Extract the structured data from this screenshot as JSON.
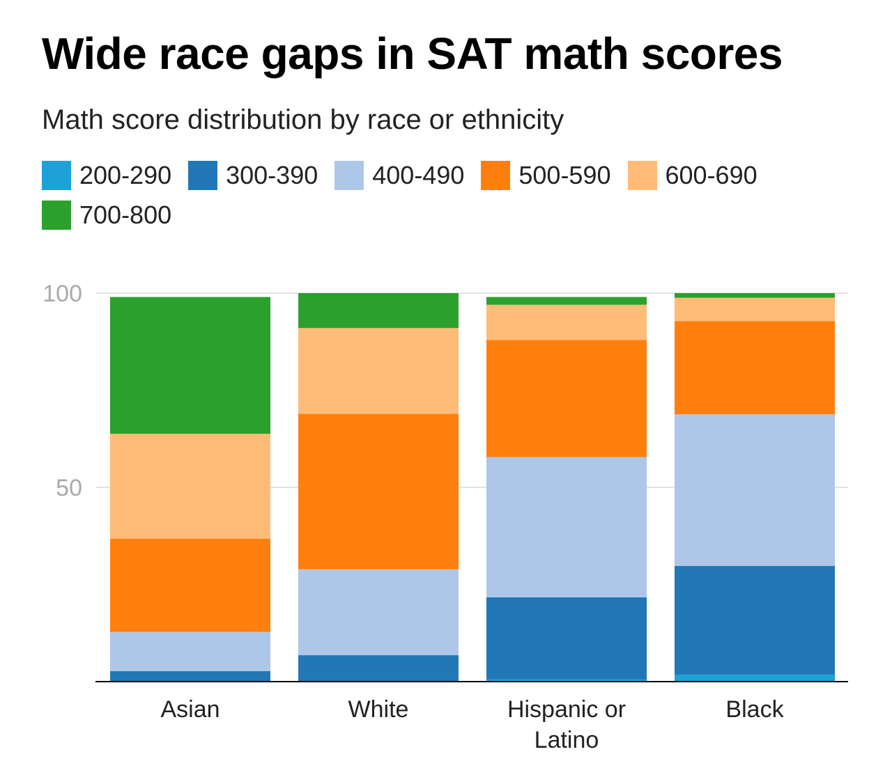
{
  "chart_data": {
    "type": "bar",
    "stacked": true,
    "title": "Wide race gaps in SAT math scores",
    "subtitle": "Math score distribution by race or ethnicity",
    "categories": [
      [
        "Asian"
      ],
      [
        "White"
      ],
      [
        "Hispanic or",
        "Latino"
      ],
      [
        "Black"
      ]
    ],
    "series": [
      {
        "name": "200-290",
        "color": "#1da1d6",
        "values": [
          0,
          0,
          0.5,
          1.8
        ]
      },
      {
        "name": "300-390",
        "color": "#2278b6",
        "values": [
          2.7,
          6.8,
          21.2,
          28.0
        ]
      },
      {
        "name": "400-490",
        "color": "#aec7e8",
        "values": [
          10.1,
          22.1,
          36.1,
          39.0
        ]
      },
      {
        "name": "500-590",
        "color": "#ff7f0e",
        "values": [
          24.0,
          40.0,
          30.1,
          24.0
        ]
      },
      {
        "name": "600-690",
        "color": "#ffbb78",
        "values": [
          27.0,
          22.1,
          9.1,
          6.0
        ]
      },
      {
        "name": "700-800",
        "color": "#2ca02c",
        "values": [
          35.2,
          9.0,
          2.0,
          1.2
        ]
      }
    ],
    "ylim": [
      0,
      100
    ],
    "yticks": [
      50,
      100
    ],
    "grid": true,
    "legend": "top"
  }
}
